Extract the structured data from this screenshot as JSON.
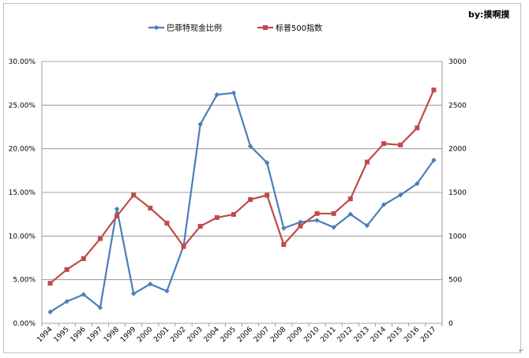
{
  "author": "by:摸啊摸",
  "return_mark": "↵",
  "chart_data": {
    "type": "line",
    "title": "",
    "x": [
      "1994",
      "1995",
      "1996",
      "1997",
      "1998",
      "1999",
      "2000",
      "2001",
      "2002",
      "2003",
      "2004",
      "2005",
      "2006",
      "2007",
      "2008",
      "2009",
      "2010",
      "2011",
      "2012",
      "2013",
      "2014",
      "2015",
      "2016",
      "2017"
    ],
    "series": [
      {
        "name": "巴菲特现金比例",
        "axis": "left",
        "color": "#4a7ebb",
        "marker": "diamond",
        "values": [
          0.013,
          0.025,
          0.033,
          0.018,
          0.131,
          0.034,
          0.045,
          0.037,
          0.089,
          0.228,
          0.262,
          0.264,
          0.203,
          0.184,
          0.109,
          0.116,
          0.118,
          0.11,
          0.125,
          0.112,
          0.136,
          0.147,
          0.16,
          0.187
        ]
      },
      {
        "name": "标普500指数",
        "axis": "right",
        "color": "#be4b48",
        "marker": "square",
        "values": [
          459,
          616,
          741,
          970,
          1229,
          1469,
          1320,
          1148,
          880,
          1112,
          1212,
          1248,
          1418,
          1468,
          903,
          1115,
          1258,
          1258,
          1426,
          1848,
          2059,
          2044,
          2239,
          2674
        ]
      }
    ],
    "y_left": {
      "min": 0,
      "max": 0.3,
      "ticks": [
        "0.00%",
        "5.00%",
        "10.00%",
        "15.00%",
        "20.00%",
        "25.00%",
        "30.00%"
      ]
    },
    "y_right": {
      "min": 0,
      "max": 3000,
      "ticks": [
        "0",
        "500",
        "1000",
        "1500",
        "2000",
        "2500",
        "3000"
      ]
    },
    "grid": true,
    "legend_position": "top"
  }
}
